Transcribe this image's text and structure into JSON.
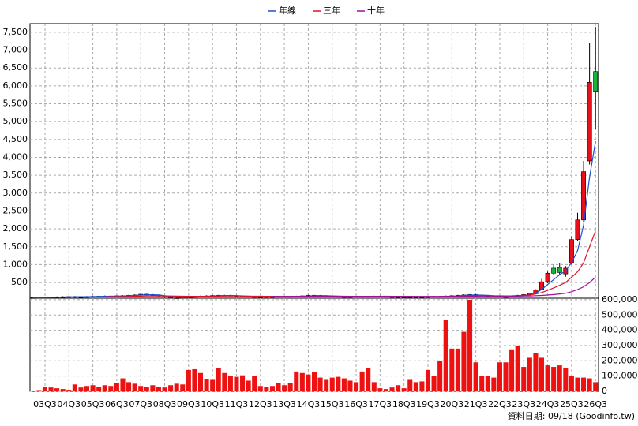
{
  "chart_data": {
    "type": "candlestick",
    "note": "資料日期: 09/18 (Goodinfo.tw)",
    "grid": true,
    "up_color": "#e8101a",
    "down_color": "#19b33a",
    "volume_color": "#ee1111",
    "categories": [
      null,
      null,
      "03Q3",
      null,
      null,
      null,
      "04Q3",
      null,
      null,
      null,
      "05Q3",
      null,
      null,
      null,
      "06Q3",
      null,
      null,
      null,
      "07Q3",
      null,
      null,
      null,
      "08Q3",
      null,
      null,
      null,
      "09Q3",
      null,
      null,
      null,
      "10Q3",
      null,
      null,
      null,
      "11Q3",
      null,
      null,
      null,
      "12Q3",
      null,
      null,
      null,
      "13Q3",
      null,
      null,
      null,
      "14Q3",
      null,
      null,
      null,
      "15Q3",
      null,
      null,
      null,
      "16Q3",
      null,
      null,
      null,
      "17Q3",
      null,
      null,
      null,
      "18Q3",
      null,
      null,
      null,
      "19Q3",
      null,
      null,
      null,
      "20Q3",
      null,
      null,
      null,
      "21Q3",
      null,
      null,
      null,
      "22Q3",
      null,
      null,
      null,
      "23Q3",
      null,
      null,
      null,
      "24Q3",
      null,
      null,
      null,
      "25Q3",
      null,
      null,
      null,
      "26Q3"
    ],
    "open": [
      70,
      75,
      80,
      85,
      90,
      95,
      100,
      105,
      100,
      100,
      105,
      110,
      115,
      120,
      115,
      125,
      130,
      140,
      150,
      170,
      160,
      150,
      120,
      90,
      70,
      60,
      80,
      100,
      110,
      120,
      125,
      135,
      140,
      140,
      130,
      120,
      110,
      105,
      100,
      100,
      105,
      105,
      110,
      110,
      110,
      115,
      125,
      140,
      135,
      130,
      120,
      110,
      105,
      100,
      105,
      110,
      105,
      110,
      115,
      110,
      105,
      100,
      95,
      100,
      95,
      95,
      100,
      105,
      110,
      105,
      120,
      130,
      140,
      150,
      160,
      145,
      130,
      120,
      110,
      100,
      105,
      120,
      140,
      160,
      200,
      300,
      520,
      900,
      920,
      740,
      1050,
      1700,
      2250,
      3900,
      6400
    ],
    "high": [
      90,
      95,
      100,
      105,
      110,
      115,
      120,
      120,
      115,
      120,
      125,
      130,
      135,
      135,
      140,
      145,
      155,
      165,
      185,
      185,
      175,
      165,
      135,
      105,
      85,
      95,
      115,
      125,
      135,
      140,
      150,
      155,
      155,
      155,
      145,
      135,
      125,
      120,
      115,
      120,
      120,
      125,
      125,
      125,
      130,
      140,
      155,
      155,
      150,
      145,
      135,
      125,
      120,
      120,
      125,
      125,
      125,
      130,
      130,
      125,
      120,
      115,
      115,
      115,
      110,
      115,
      120,
      125,
      125,
      135,
      145,
      155,
      165,
      175,
      175,
      160,
      145,
      135,
      125,
      120,
      135,
      155,
      175,
      215,
      310,
      600,
      800,
      1000,
      1050,
      960,
      1800,
      2450,
      3900,
      7200,
      7650
    ],
    "low": [
      55,
      60,
      65,
      70,
      75,
      80,
      85,
      85,
      85,
      85,
      90,
      95,
      100,
      100,
      100,
      110,
      115,
      125,
      135,
      145,
      135,
      105,
      75,
      55,
      45,
      45,
      65,
      85,
      95,
      105,
      110,
      120,
      125,
      115,
      105,
      95,
      90,
      85,
      85,
      85,
      90,
      90,
      95,
      95,
      95,
      100,
      110,
      120,
      115,
      105,
      95,
      90,
      85,
      85,
      90,
      90,
      90,
      95,
      95,
      90,
      85,
      80,
      80,
      80,
      80,
      80,
      85,
      90,
      90,
      90,
      105,
      115,
      125,
      135,
      130,
      115,
      105,
      95,
      85,
      85,
      90,
      105,
      125,
      145,
      190,
      280,
      480,
      720,
      700,
      660,
      1000,
      1650,
      2200,
      3800,
      4800
    ],
    "close": [
      75,
      80,
      85,
      90,
      95,
      100,
      105,
      100,
      100,
      105,
      110,
      115,
      120,
      115,
      125,
      130,
      140,
      150,
      170,
      160,
      150,
      120,
      90,
      70,
      60,
      80,
      100,
      110,
      120,
      125,
      135,
      140,
      140,
      130,
      120,
      110,
      105,
      100,
      100,
      105,
      105,
      110,
      110,
      110,
      115,
      125,
      140,
      135,
      130,
      120,
      110,
      105,
      100,
      105,
      110,
      105,
      110,
      115,
      110,
      105,
      100,
      95,
      100,
      95,
      95,
      100,
      105,
      110,
      105,
      120,
      130,
      140,
      150,
      160,
      145,
      130,
      120,
      110,
      100,
      105,
      120,
      140,
      160,
      200,
      290,
      520,
      760,
      760,
      780,
      900,
      1700,
      2250,
      3600,
      6100,
      5850
    ],
    "volume": [
      5000,
      8000,
      30000,
      25000,
      20000,
      15000,
      10000,
      45000,
      25000,
      35000,
      40000,
      30000,
      40000,
      35000,
      55000,
      85000,
      60000,
      50000,
      35000,
      30000,
      40000,
      30000,
      25000,
      40000,
      50000,
      45000,
      140000,
      145000,
      120000,
      80000,
      75000,
      155000,
      120000,
      100000,
      95000,
      105000,
      70000,
      100000,
      35000,
      30000,
      35000,
      55000,
      40000,
      55000,
      130000,
      120000,
      110000,
      125000,
      90000,
      75000,
      90000,
      95000,
      85000,
      70000,
      60000,
      130000,
      155000,
      60000,
      20000,
      15000,
      25000,
      40000,
      20000,
      75000,
      60000,
      65000,
      140000,
      100000,
      200000,
      470000,
      280000,
      280000,
      390000,
      600000,
      190000,
      100000,
      100000,
      90000,
      190000,
      190000,
      270000,
      300000,
      160000,
      220000,
      250000,
      220000,
      170000,
      160000,
      170000,
      150000,
      100000,
      90000,
      90000,
      85000,
      60000
    ],
    "series": [
      {
        "name": "年線",
        "color": "#1a4fd6",
        "values": [
          75,
          78,
          80,
          83,
          88,
          92,
          97,
          100,
          102,
          103,
          105,
          108,
          112,
          115,
          118,
          122,
          128,
          136,
          148,
          155,
          158,
          150,
          130,
          108,
          90,
          80,
          80,
          88,
          98,
          110,
          120,
          130,
          135,
          136,
          132,
          125,
          115,
          108,
          104,
          102,
          103,
          105,
          107,
          109,
          111,
          115,
          122,
          129,
          132,
          130,
          124,
          116,
          109,
          105,
          104,
          105,
          107,
          109,
          110,
          110,
          107,
          103,
          100,
          98,
          97,
          97,
          100,
          103,
          105,
          110,
          116,
          124,
          135,
          145,
          148,
          146,
          139,
          127,
          115,
          109,
          109,
          116,
          129,
          155,
          203,
          303,
          443,
          583,
          716,
          825,
          1060,
          1390,
          2110,
          3440,
          4450
        ]
      },
      {
        "name": "三年",
        "color": "#e01030",
        "values": [
          null,
          null,
          null,
          null,
          null,
          null,
          null,
          null,
          null,
          null,
          null,
          null,
          100,
          102,
          104,
          106,
          109,
          113,
          118,
          122,
          125,
          126,
          124,
          121,
          118,
          115,
          113,
          112,
          112,
          113,
          115,
          118,
          121,
          122,
          121,
          119,
          117,
          116,
          115,
          114,
          113,
          111,
          110,
          109,
          108,
          109,
          111,
          114,
          116,
          117,
          117,
          116,
          115,
          114,
          113,
          112,
          112,
          113,
          114,
          115,
          112,
          109,
          107,
          106,
          105,
          104,
          104,
          104,
          104,
          106,
          109,
          112,
          116,
          121,
          124,
          126,
          127,
          127,
          126,
          124,
          127,
          132,
          138,
          150,
          180,
          220,
          280,
          350,
          420,
          500,
          650,
          800,
          1050,
          1500,
          1950
        ]
      },
      {
        "name": "十年",
        "color": "#a0109a",
        "values": [
          null,
          null,
          null,
          null,
          null,
          null,
          null,
          null,
          null,
          null,
          null,
          null,
          null,
          null,
          null,
          null,
          null,
          null,
          null,
          null,
          null,
          null,
          null,
          null,
          null,
          null,
          null,
          null,
          null,
          null,
          null,
          null,
          null,
          null,
          null,
          null,
          null,
          null,
          null,
          null,
          110,
          110,
          111,
          111,
          112,
          112,
          113,
          114,
          114,
          115,
          115,
          115,
          114,
          114,
          114,
          114,
          114,
          114,
          114,
          114,
          113,
          113,
          112,
          112,
          111,
          111,
          111,
          111,
          111,
          112,
          113,
          114,
          115,
          117,
          118,
          119,
          119,
          119,
          118,
          118,
          118,
          119,
          121,
          124,
          130,
          138,
          148,
          162,
          180,
          200,
          240,
          300,
          380,
          500,
          650
        ]
      }
    ],
    "ylim": [
      60,
      7740
    ],
    "yticks": [
      500,
      {
        "value": 1000,
        "label": "1,000"
      },
      {
        "value": 1500,
        "label": "1,500"
      },
      {
        "value": 2000,
        "label": "2,000"
      },
      {
        "value": 2500,
        "label": "2,500"
      },
      {
        "value": 3000,
        "label": "3,000"
      },
      {
        "value": 3500,
        "label": "3,500"
      },
      {
        "value": 4000,
        "label": "4,000"
      },
      {
        "value": 4500,
        "label": "4,500"
      },
      {
        "value": 5000,
        "label": "5,000"
      },
      {
        "value": 5500,
        "label": "5,500"
      },
      {
        "value": 6000,
        "label": "6,000"
      },
      {
        "value": 6500,
        "label": "6,500"
      },
      {
        "value": 7000,
        "label": "7,000"
      },
      {
        "value": 7500,
        "label": "7,500"
      }
    ],
    "y2lim": [
      0,
      610000
    ],
    "y2ticks": [
      0,
      {
        "value": 100000,
        "label": "100,000"
      },
      {
        "value": 200000,
        "label": "200,000"
      },
      {
        "value": 300000,
        "label": "300,000"
      },
      {
        "value": 400000,
        "label": "400,000"
      },
      {
        "value": 500000,
        "label": "500,000"
      },
      {
        "value": 600000,
        "label": "600,000"
      }
    ]
  }
}
